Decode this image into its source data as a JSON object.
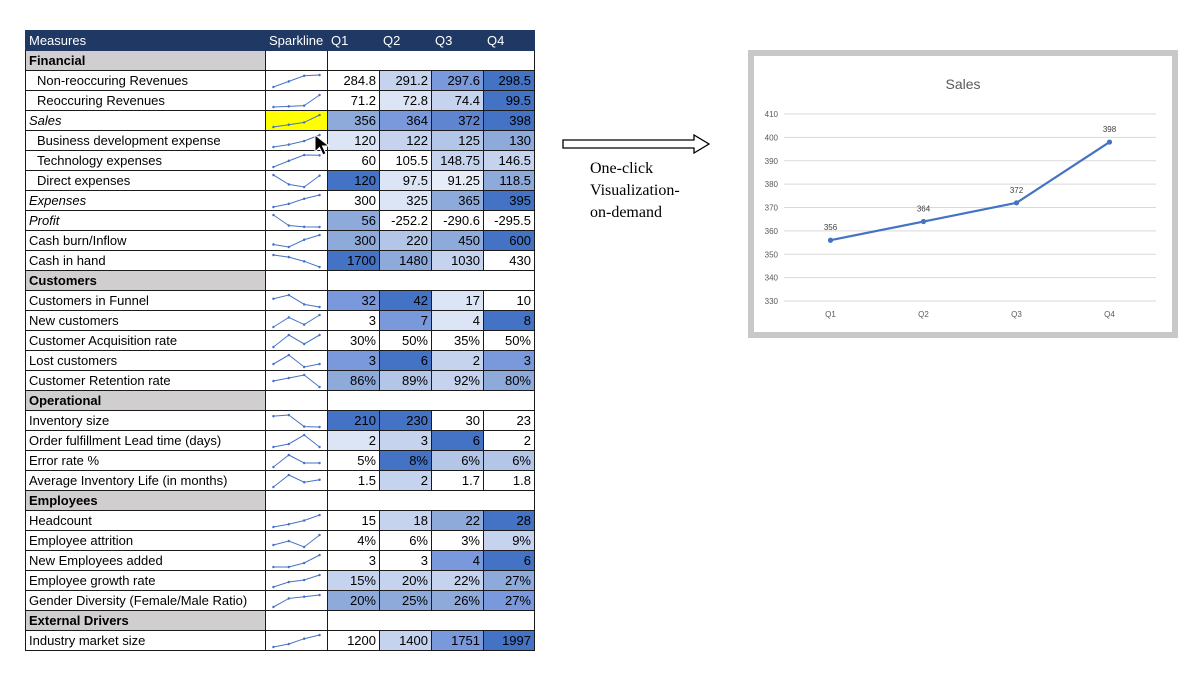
{
  "table": {
    "headers": [
      "Measures",
      "Sparkline",
      "Q1",
      "Q2",
      "Q3",
      "Q4"
    ],
    "rows": [
      {
        "type": "section",
        "label": "Financial"
      },
      {
        "label": "Non-reoccuring Revenues",
        "indent": true,
        "values": [
          "284.8",
          "291.2",
          "297.6",
          "298.5"
        ],
        "spark": [
          284.8,
          291.2,
          297.6,
          298.5
        ],
        "fills": [
          "#ffffff",
          "#c5d3ef",
          "#7a98dc",
          "#4472c4"
        ]
      },
      {
        "label": "Reoccuring Revenues",
        "indent": true,
        "values": [
          "71.2",
          "72.8",
          "74.4",
          "99.5"
        ],
        "spark": [
          71.2,
          72.8,
          74.4,
          99.5
        ],
        "fills": [
          "#ffffff",
          "#dce5f6",
          "#c5d3ef",
          "#4472c4"
        ]
      },
      {
        "label": "Sales",
        "italic": true,
        "highlight": true,
        "values": [
          "356",
          "364",
          "372",
          "398"
        ],
        "spark": [
          356,
          364,
          372,
          398
        ],
        "fills": [
          "#8eaadb",
          "#7a98dc",
          "#5f84d0",
          "#4472c4"
        ]
      },
      {
        "label": "Business development expense",
        "indent": true,
        "values": [
          "120",
          "122",
          "125",
          "130"
        ],
        "spark": [
          120,
          122,
          125,
          130
        ],
        "fills": [
          "#dce5f6",
          "#c5d3ef",
          "#b4c6e7",
          "#8eaadb"
        ]
      },
      {
        "label": "Technology expenses",
        "indent": true,
        "values": [
          "60",
          "105.5",
          "148.75",
          "146.5"
        ],
        "spark": [
          60,
          105.5,
          148.75,
          146.5
        ],
        "fills": [
          "#ffffff",
          "#ffffff",
          "#c5d3ef",
          "#c5d3ef"
        ]
      },
      {
        "label": "Direct expenses",
        "indent": true,
        "values": [
          "120",
          "97.5",
          "91.25",
          "118.5"
        ],
        "spark": [
          120,
          97.5,
          91.25,
          118.5
        ],
        "fills": [
          "#4472c4",
          "#dce5f6",
          "#e7edf8",
          "#8eaadb"
        ]
      },
      {
        "label": "Expenses",
        "italic": true,
        "values": [
          "300",
          "325",
          "365",
          "395"
        ],
        "spark": [
          300,
          325,
          365,
          395
        ],
        "fills": [
          "#ffffff",
          "#dce5f6",
          "#8eaadb",
          "#4472c4"
        ]
      },
      {
        "label": "Profit",
        "italic": true,
        "values": [
          "56",
          "-252.2",
          "-290.6",
          "-295.5"
        ],
        "spark": [
          56,
          -252.2,
          -290.6,
          -295.5
        ],
        "fills": [
          "#8eaadb",
          "#ffffff",
          "#ffffff",
          "#ffffff"
        ]
      },
      {
        "label": "Cash burn/Inflow",
        "values": [
          "300",
          "220",
          "450",
          "600"
        ],
        "spark": [
          300,
          220,
          450,
          600
        ],
        "fills": [
          "#8eaadb",
          "#b4c6e7",
          "#8eaadb",
          "#4472c4"
        ]
      },
      {
        "label": "Cash in hand",
        "values": [
          "1700",
          "1480",
          "1030",
          "430"
        ],
        "spark": [
          1700,
          1480,
          1030,
          430
        ],
        "fills": [
          "#4472c4",
          "#8eaadb",
          "#c5d3ef",
          "#ffffff"
        ]
      },
      {
        "type": "section",
        "label": "Customers"
      },
      {
        "label": "Customers in Funnel",
        "values": [
          "32",
          "42",
          "17",
          "10"
        ],
        "spark": [
          32,
          42,
          17,
          10
        ],
        "fills": [
          "#7a98dc",
          "#4472c4",
          "#dce5f6",
          "#ffffff"
        ]
      },
      {
        "label": "New customers",
        "values": [
          "3",
          "7",
          "4",
          "8"
        ],
        "spark": [
          3,
          7,
          4,
          8
        ],
        "fills": [
          "#ffffff",
          "#7a98dc",
          "#dce5f6",
          "#4472c4"
        ]
      },
      {
        "label": "Customer Acquisition rate",
        "values": [
          "30%",
          "50%",
          "35%",
          "50%"
        ],
        "spark": [
          30,
          50,
          35,
          50
        ],
        "fills": [
          "#ffffff",
          "#ffffff",
          "#ffffff",
          "#ffffff"
        ]
      },
      {
        "label": "Lost customers",
        "values": [
          "3",
          "6",
          "2",
          "3"
        ],
        "spark": [
          3,
          6,
          2,
          3
        ],
        "fills": [
          "#7a98dc",
          "#4472c4",
          "#c5d3ef",
          "#7a98dc"
        ]
      },
      {
        "label": "Customer Retention rate",
        "values": [
          "86%",
          "89%",
          "92%",
          "80%"
        ],
        "spark": [
          86,
          89,
          92,
          80
        ],
        "fills": [
          "#8eaadb",
          "#b4c6e7",
          "#c5d3ef",
          "#8eaadb"
        ]
      },
      {
        "type": "section",
        "label": "Operational"
      },
      {
        "label": "Inventory size",
        "values": [
          "210",
          "230",
          "30",
          "23"
        ],
        "spark": [
          210,
          230,
          30,
          23
        ],
        "fills": [
          "#4472c4",
          "#4472c4",
          "#ffffff",
          "#ffffff"
        ]
      },
      {
        "label": "Order fulfillment Lead time (days)",
        "values": [
          "2",
          "3",
          "6",
          "2"
        ],
        "spark": [
          2,
          3,
          6,
          2
        ],
        "fills": [
          "#dce5f6",
          "#c5d3ef",
          "#4472c4",
          "#ffffff"
        ]
      },
      {
        "label": "Error rate %",
        "values": [
          "5%",
          "8%",
          "6%",
          "6%"
        ],
        "spark": [
          5,
          8,
          6,
          6
        ],
        "fills": [
          "#ffffff",
          "#4472c4",
          "#b4c6e7",
          "#b4c6e7"
        ]
      },
      {
        "label": "Average Inventory Life (in months)",
        "values": [
          "1.5",
          "2",
          "1.7",
          "1.8"
        ],
        "spark": [
          1.5,
          2,
          1.7,
          1.8
        ],
        "fills": [
          "#ffffff",
          "#c5d3ef",
          "#ffffff",
          "#ffffff"
        ]
      },
      {
        "type": "section",
        "label": "Employees"
      },
      {
        "label": "Headcount",
        "values": [
          "15",
          "18",
          "22",
          "28"
        ],
        "spark": [
          15,
          18,
          22,
          28
        ],
        "fills": [
          "#ffffff",
          "#c5d3ef",
          "#8eaadb",
          "#4472c4"
        ]
      },
      {
        "label": "Employee attrition",
        "values": [
          "4%",
          "6%",
          "3%",
          "9%"
        ],
        "spark": [
          4,
          6,
          3,
          9
        ],
        "fills": [
          "#ffffff",
          "#ffffff",
          "#ffffff",
          "#c5d3ef"
        ]
      },
      {
        "label": "New Employees added",
        "values": [
          "3",
          "3",
          "4",
          "6"
        ],
        "spark": [
          3,
          3,
          4,
          6
        ],
        "fills": [
          "#ffffff",
          "#ffffff",
          "#7a98dc",
          "#4472c4"
        ]
      },
      {
        "label": "Employee growth rate",
        "values": [
          "15%",
          "20%",
          "22%",
          "27%"
        ],
        "spark": [
          15,
          20,
          22,
          27
        ],
        "fills": [
          "#c5d3ef",
          "#c5d3ef",
          "#c5d3ef",
          "#8eaadb"
        ]
      },
      {
        "label": "Gender Diversity (Female/Male Ratio)",
        "values": [
          "20%",
          "25%",
          "26%",
          "27%"
        ],
        "spark": [
          20,
          25,
          26,
          27
        ],
        "fills": [
          "#8eaadb",
          "#8eaadb",
          "#8eaadb",
          "#7a98dc"
        ]
      },
      {
        "type": "section",
        "label": "External Drivers"
      },
      {
        "label": "Industry market size",
        "values": [
          "1200",
          "1400",
          "1751",
          "1997"
        ],
        "spark": [
          1200,
          1400,
          1751,
          1997
        ],
        "fills": [
          "#ffffff",
          "#c5d3ef",
          "#7a98dc",
          "#4472c4"
        ]
      }
    ]
  },
  "annotation": {
    "line1": "One-click",
    "line2": "Visualization-",
    "line3": "on-demand"
  },
  "icons": {
    "cursor": "mouse-pointer-icon",
    "arrow": "right-arrow-icon"
  },
  "colors": {
    "header_bg": "#1f3864",
    "section_bg": "#d0cece",
    "highlight": "#ffff00",
    "line": "#4472c4"
  },
  "chart_data": {
    "type": "line",
    "title": "Sales",
    "categories": [
      "Q1",
      "Q2",
      "Q3",
      "Q4"
    ],
    "values": [
      356,
      364,
      372,
      398
    ],
    "ylim": [
      330,
      410
    ],
    "yticks": [
      330,
      340,
      350,
      360,
      370,
      380,
      390,
      400,
      410
    ],
    "grid": true,
    "data_labels": true
  }
}
